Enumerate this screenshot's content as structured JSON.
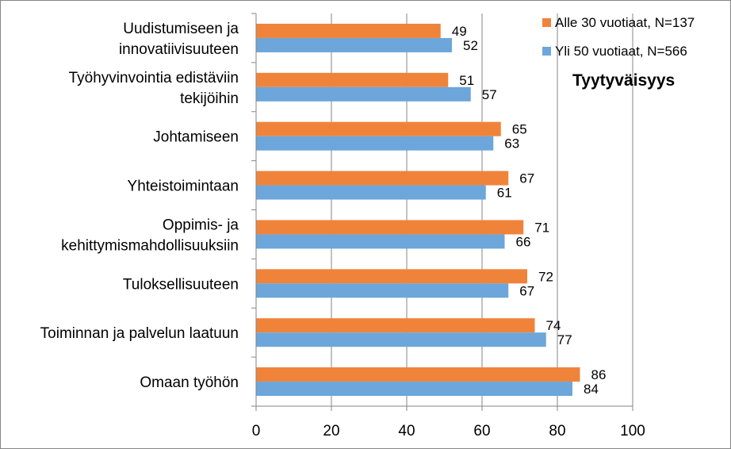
{
  "chart_data": {
    "type": "bar",
    "orientation": "horizontal",
    "categories": [
      "Uudistumiseen ja\ninnovatiivisuuteen",
      "Työhyvinvointia edistäviin\ntekijöihin",
      "Johtamiseen",
      "Yhteistoimintaan",
      "Oppimis- ja\nkehittymismahdollisuuksiin",
      "Tuloksellisuuteen",
      "Toiminnan ja palvelun laatuun",
      "Omaan työhön"
    ],
    "series": [
      {
        "name": "Alle 30 vuotiaat, N=137",
        "color": "#F0833A",
        "values": [
          49,
          51,
          65,
          67,
          71,
          72,
          74,
          86
        ]
      },
      {
        "name": "Yli 50 vuotiaat, N=566",
        "color": "#6CA6DA",
        "values": [
          52,
          57,
          63,
          61,
          66,
          67,
          77,
          84
        ]
      }
    ],
    "annotation": "Tyytyväisyys",
    "xlim": [
      0,
      100
    ],
    "xticks": [
      0,
      20,
      40,
      60,
      80,
      100
    ],
    "grid": true,
    "legend": "top-right",
    "title": "",
    "xlabel": "",
    "ylabel": ""
  }
}
